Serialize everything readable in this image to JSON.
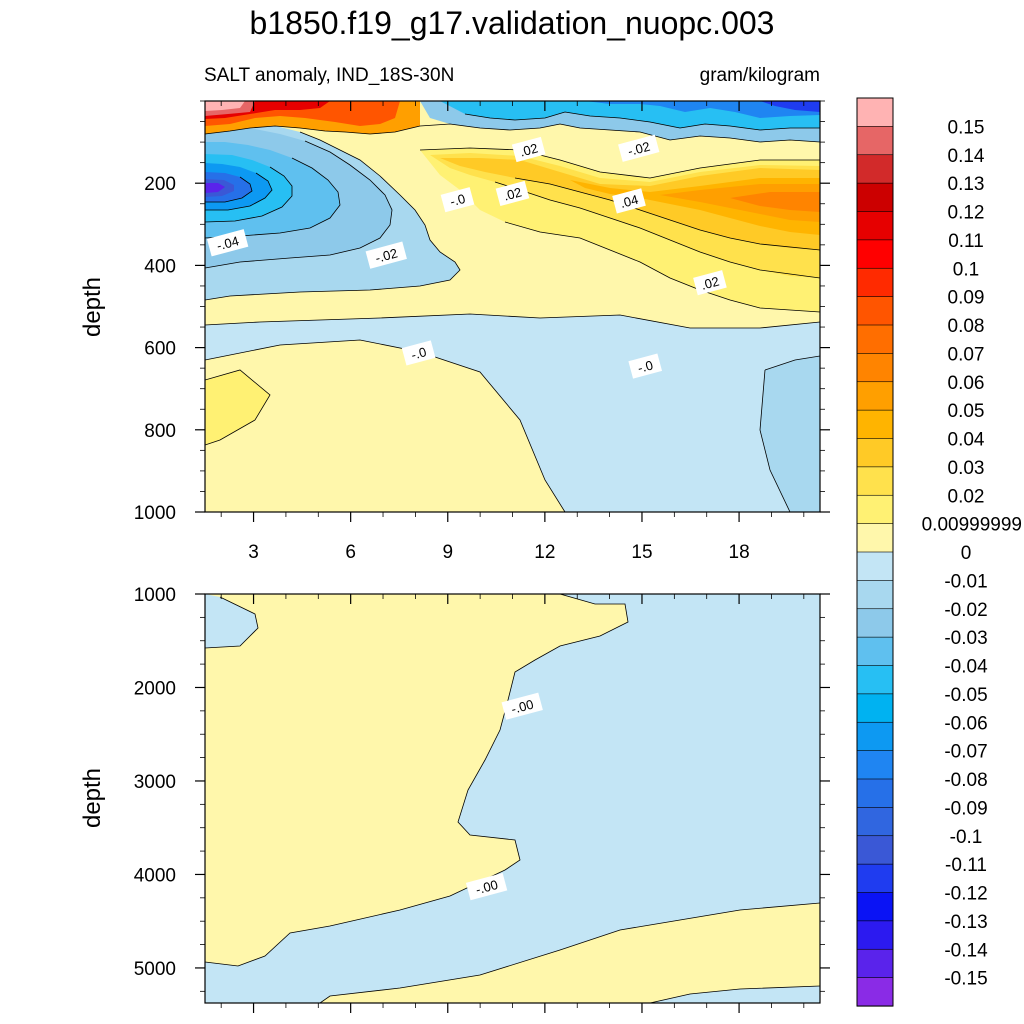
{
  "title": "b1850.f19_g17.validation_nuopc.003",
  "subtitle_left": "SALT anomaly, IND_18S-30N",
  "subtitle_right": "gram/kilogram",
  "colorbar": {
    "labels": [
      "0.15",
      "0.14",
      "0.13",
      "0.12",
      "0.11",
      "0.1",
      "0.09",
      "0.08",
      "0.07",
      "0.06",
      "0.05",
      "0.04",
      "0.03",
      "0.02",
      "0.00999999",
      "0",
      "-0.01",
      "-0.02",
      "-0.03",
      "-0.04",
      "-0.05",
      "-0.06",
      "-0.07",
      "-0.08",
      "-0.09",
      "-0.1",
      "-0.11",
      "-0.12",
      "-0.13",
      "-0.14",
      "-0.15"
    ],
    "colors": [
      "#ffb3b3",
      "#e66666",
      "#d22a2a",
      "#cc0000",
      "#e60000",
      "#ff0000",
      "#ff2a00",
      "#ff5500",
      "#ff6e00",
      "#ff8400",
      "#ff9f00",
      "#ffb400",
      "#ffca26",
      "#ffe14c",
      "#fff173",
      "#fff7ab",
      "#c3e5f5",
      "#a8d8ef",
      "#8dc9ea",
      "#5fc0ef",
      "#27bff3",
      "#00b2f1",
      "#0d99f2",
      "#1f85f2",
      "#2670e8",
      "#3066e0",
      "#3a58d6",
      "#1f3cf0",
      "#0a13f5",
      "#2c1af0",
      "#5a23eb",
      "#8a2be6"
    ]
  },
  "chart_data": [
    {
      "type": "heatmap",
      "panel": "top",
      "ylabel": "depth",
      "xticks": [
        3,
        6,
        9,
        12,
        15,
        18
      ],
      "yticks": [
        200,
        400,
        600,
        800,
        1000
      ],
      "xlim": [
        1.5,
        20.5
      ],
      "ylim": [
        0,
        1000
      ],
      "y_reversed": true,
      "contour_labels": [
        {
          "text": "-.04",
          "x": 2.2,
          "y": 345
        },
        {
          "text": "-.02",
          "x": 7.1,
          "y": 375
        },
        {
          "text": "-.0",
          "x": 9.3,
          "y": 240
        },
        {
          "text": ".02",
          "x": 11.5,
          "y": 118
        },
        {
          "text": ".02",
          "x": 11.0,
          "y": 225
        },
        {
          "text": ".04",
          "x": 14.6,
          "y": 243
        },
        {
          "text": "-.02",
          "x": 14.9,
          "y": 115
        },
        {
          "text": ".02",
          "x": 17.1,
          "y": 442
        },
        {
          "text": "-.0",
          "x": 15.1,
          "y": 645
        },
        {
          "text": "-.0",
          "x": 8.1,
          "y": 613
        }
      ]
    },
    {
      "type": "heatmap",
      "panel": "bottom",
      "ylabel": "depth",
      "yticks": [
        1000,
        2000,
        3000,
        4000,
        5000
      ],
      "xlim": [
        1.5,
        20.5
      ],
      "ylim": [
        1000,
        5375
      ],
      "y_reversed": true,
      "contour_labels": [
        {
          "text": "-.00",
          "x": 11.3,
          "y": 2200
        },
        {
          "text": "-.00",
          "x": 10.2,
          "y": 4130
        },
        {
          "text": "-.00",
          "x": 13.1,
          "y": 5830
        }
      ]
    }
  ]
}
